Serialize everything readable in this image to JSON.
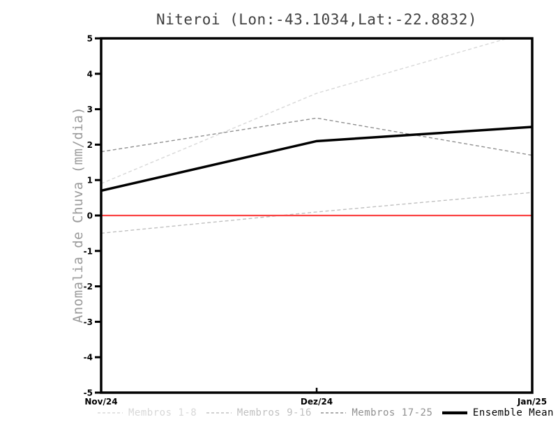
{
  "chart_data": {
    "type": "line",
    "title": "Niteroi (Lon:-43.1034,Lat:-22.8832)",
    "ylabel": "Anomalia de Chuva (mm/dia)",
    "xlabel": "",
    "categories": [
      "Nov/24",
      "Dez/24",
      "Jan/25"
    ],
    "ylim": [
      -5,
      5
    ],
    "ytick_step": 1,
    "grid": false,
    "legend_position": "bottom",
    "series": [
      {
        "name": "Membros 1-8",
        "values": [
          0.9,
          3.45,
          5.2
        ],
        "color": "#d8d8d8",
        "style": "dashed",
        "width": 1.4
      },
      {
        "name": "Membros 9-16",
        "values": [
          -0.5,
          0.1,
          0.65
        ],
        "color": "#c0c0c0",
        "style": "dashed",
        "width": 1.4
      },
      {
        "name": "Membros 17-25",
        "values": [
          1.8,
          2.75,
          1.7
        ],
        "color": "#909090",
        "style": "dashed",
        "width": 1.4
      },
      {
        "name": "Ensemble Mean",
        "values": [
          0.7,
          2.1,
          2.5
        ],
        "color": "#000000",
        "style": "solid",
        "width": 3.5
      }
    ],
    "reference_line": {
      "y": 0,
      "color": "#fb4343",
      "width": 2.2
    },
    "axis_color": "#000000"
  }
}
